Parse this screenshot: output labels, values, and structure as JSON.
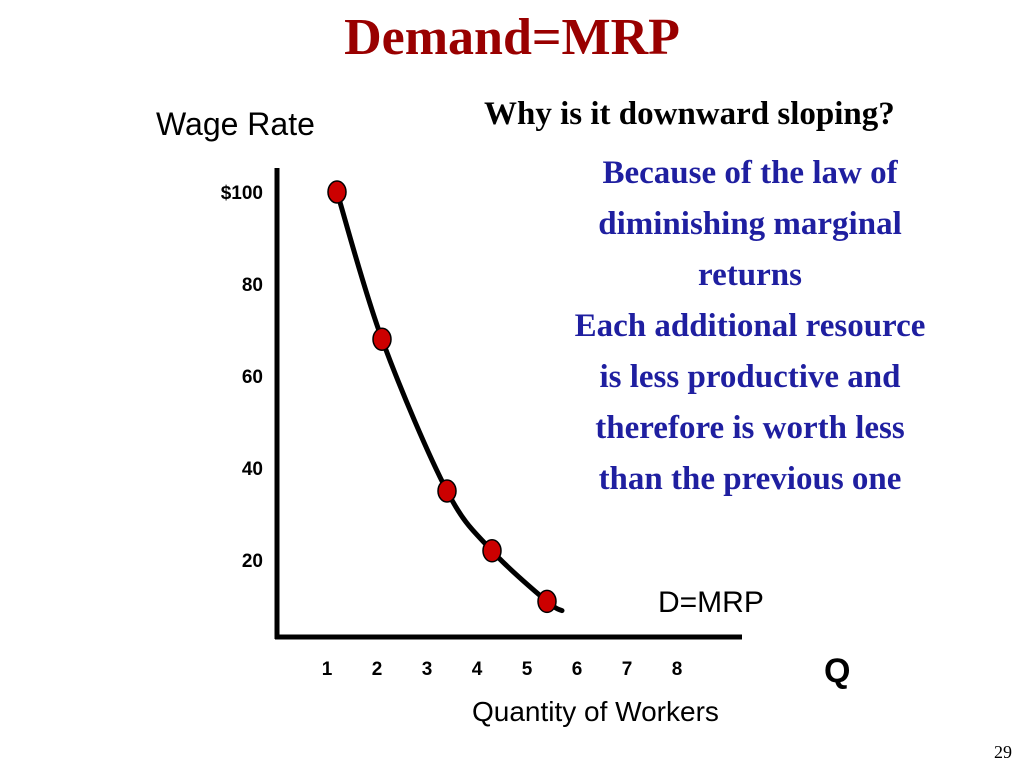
{
  "slide": {
    "title": "Demand=MRP",
    "question": "Why is it downward sloping?",
    "answer_lines": [
      "Because of the law of",
      "diminishing marginal",
      "returns",
      "Each additional resource",
      "is less productive and",
      "therefore is worth less",
      "than the previous one"
    ],
    "slide_number": "29"
  },
  "chart_data": {
    "type": "line",
    "ylabel": "Wage Rate",
    "xlabel": "Quantity of Workers",
    "x_axis_symbol": "Q",
    "x_ticks": [
      "1",
      "2",
      "3",
      "4",
      "5",
      "6",
      "7",
      "8"
    ],
    "y_ticks": [
      "20",
      "40",
      "60",
      "80",
      "$100"
    ],
    "y_tick_values": [
      20,
      40,
      60,
      80,
      100
    ],
    "ylim": [
      0,
      100
    ],
    "xlim": [
      0,
      8.9
    ],
    "series": [
      {
        "name": "D=MRP",
        "points": [
          {
            "x": 1.2,
            "y": 100
          },
          {
            "x": 2.1,
            "y": 68
          },
          {
            "x": 3.4,
            "y": 35
          },
          {
            "x": 4.3,
            "y": 22
          },
          {
            "x": 5.4,
            "y": 11
          }
        ],
        "curve_end": {
          "x": 5.7,
          "y": 9
        }
      }
    ],
    "colors": {
      "points": "#cc0000",
      "line": "#000000",
      "axes": "#000000"
    }
  }
}
